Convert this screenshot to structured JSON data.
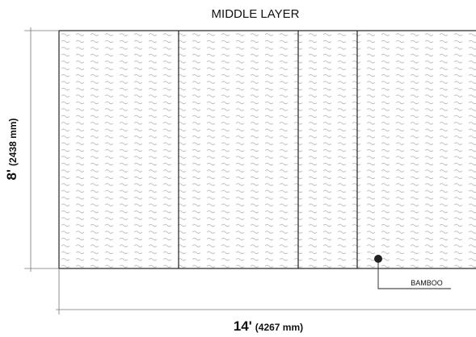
{
  "title": "MIDDLE LAYER",
  "height": {
    "feet": "8'",
    "mm": "(2438 mm)"
  },
  "width": {
    "feet": "14'",
    "mm": "(4267 mm)"
  },
  "callout": "BAMBOO"
}
